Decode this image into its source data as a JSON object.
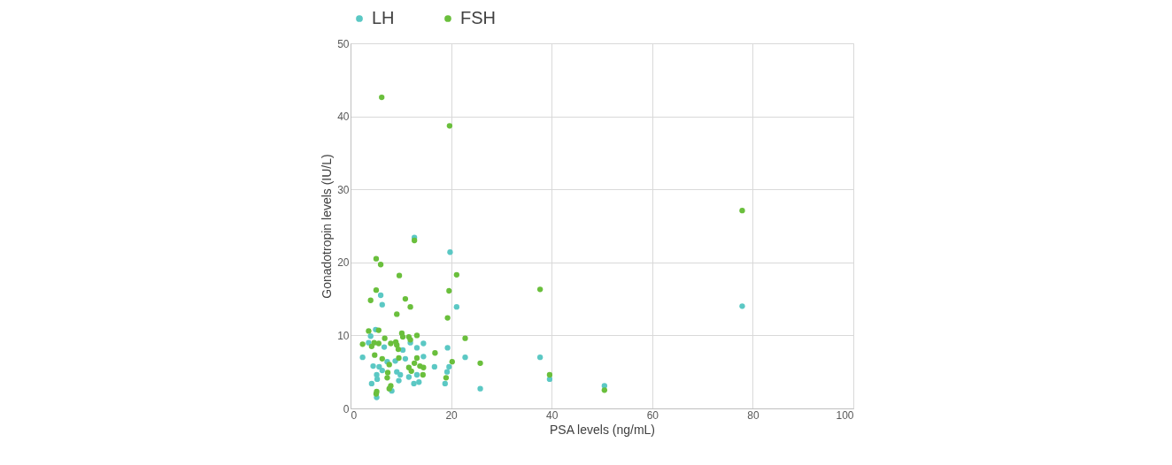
{
  "chart_data": {
    "type": "scatter",
    "xlabel": "PSA levels (ng/mL)",
    "ylabel": "Gonadotropin levels (IU/L)",
    "xlim": [
      0,
      100
    ],
    "xticks": [
      0,
      20,
      40,
      60,
      80,
      100
    ],
    "ylim": [
      0,
      50
    ],
    "yticks": [
      0,
      10,
      20,
      30,
      40,
      50
    ],
    "grid": true,
    "legend": "top",
    "marker": "circle",
    "series": [
      {
        "name": "LH",
        "color": "#5bc8c4",
        "x": [
          12.7,
          19.8,
          6.0,
          6.3,
          21.1,
          5.0,
          4.0,
          3.6,
          6.7,
          11.9,
          14.5,
          13.2,
          10.4,
          19.3,
          2.4,
          14.5,
          22.8,
          10.9,
          8.9,
          7.3,
          4.5,
          5.7,
          16.7,
          6.3,
          19.6,
          19.2,
          9.2,
          9.9,
          13.2,
          5.2,
          5.3,
          11.6,
          9.6,
          12.6,
          13.6,
          4.2,
          18.8,
          8.2,
          5.2,
          25.8,
          37.7,
          39.6,
          50.5,
          77.9
        ],
        "values": [
          23.4,
          21.4,
          15.5,
          14.2,
          13.9,
          10.8,
          9.9,
          9.0,
          8.4,
          9.0,
          8.9,
          8.3,
          8.0,
          8.3,
          7.0,
          7.1,
          7.0,
          6.8,
          6.5,
          6.4,
          5.8,
          5.7,
          5.7,
          5.2,
          5.7,
          5.0,
          5.0,
          4.6,
          4.6,
          4.6,
          4.0,
          4.3,
          3.8,
          3.4,
          3.6,
          3.4,
          3.4,
          2.4,
          1.5,
          2.7,
          7.0,
          4.0,
          3.1,
          14.0
        ]
      },
      {
        "name": "FSH",
        "color": "#6abf3c",
        "x": [
          5.1,
          6.0,
          12.7,
          9.7,
          21.1,
          5.1,
          4.0,
          19.6,
          10.9,
          11.9,
          9.2,
          19.3,
          3.6,
          5.6,
          10.2,
          13.2,
          22.8,
          11.6,
          6.8,
          10.4,
          11.9,
          2.4,
          4.7,
          5.6,
          8.0,
          9.0,
          4.2,
          9.2,
          9.5,
          4.8,
          16.8,
          6.3,
          9.6,
          13.2,
          7.7,
          11.6,
          12.7,
          13.8,
          14.5,
          20.2,
          25.8,
          12.1,
          7.4,
          14.4,
          7.3,
          19.0,
          5.2,
          8.0,
          7.7,
          5.1,
          6.2,
          19.7,
          77.9,
          37.7,
          39.6,
          50.5
        ],
        "values": [
          20.5,
          19.7,
          23.0,
          18.2,
          18.3,
          16.2,
          14.8,
          16.1,
          15.0,
          13.9,
          12.9,
          12.4,
          10.6,
          10.7,
          10.3,
          10.0,
          9.6,
          9.8,
          9.6,
          9.8,
          9.4,
          8.8,
          9.0,
          8.9,
          8.9,
          9.1,
          8.5,
          8.7,
          8.1,
          7.3,
          7.6,
          6.8,
          6.9,
          6.9,
          6.0,
          5.6,
          6.2,
          5.8,
          5.6,
          6.4,
          6.2,
          5.1,
          4.9,
          4.6,
          4.2,
          4.2,
          2.3,
          3.1,
          2.7,
          2.0,
          42.6,
          38.7,
          27.1,
          16.3,
          4.6,
          2.5
        ]
      }
    ]
  }
}
